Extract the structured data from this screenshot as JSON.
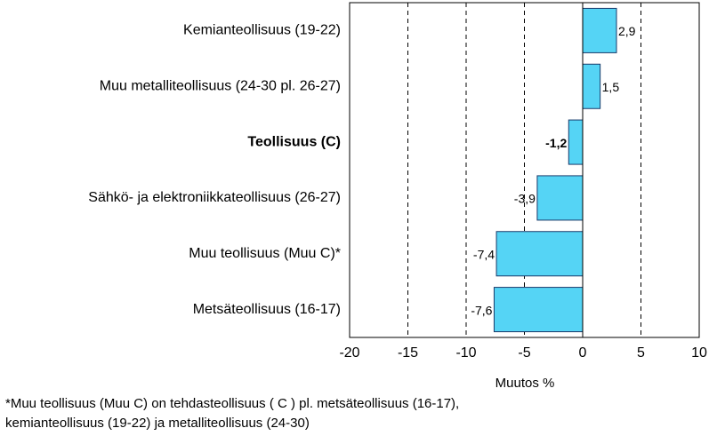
{
  "chart_data": {
    "type": "barh",
    "categories": [
      "Kemianteollisuus (19-22)",
      "Muu metalliteollisuus (24-30 pl. 26-27)",
      "Teollisuus (C)",
      "Sähkö- ja elektroniikkateollisuus (26-27)",
      "Muu teollisuus (Muu C)*",
      "Metsäteollisuus (16-17)"
    ],
    "values": [
      2.9,
      1.5,
      -1.2,
      -3.9,
      -7.4,
      -7.6
    ],
    "value_labels": [
      "2,9",
      "1,5",
      "-1,2",
      "-3,9",
      "-7,4",
      "-7,6"
    ],
    "bold_index": 2,
    "color": "#55d4f5",
    "xlim": [
      -20,
      10
    ],
    "xticks": [
      -20,
      -15,
      -10,
      -5,
      0,
      5,
      10
    ],
    "grid": true,
    "xlabel": "Muutos %",
    "note": [
      "*Muu teollisuus (Muu C) on tehdasteollisuus ( C ) pl. metsäteollisuus (16-17),",
      "kemianteollisuus (19-22) ja metalliteollisuus (24-30)"
    ]
  }
}
